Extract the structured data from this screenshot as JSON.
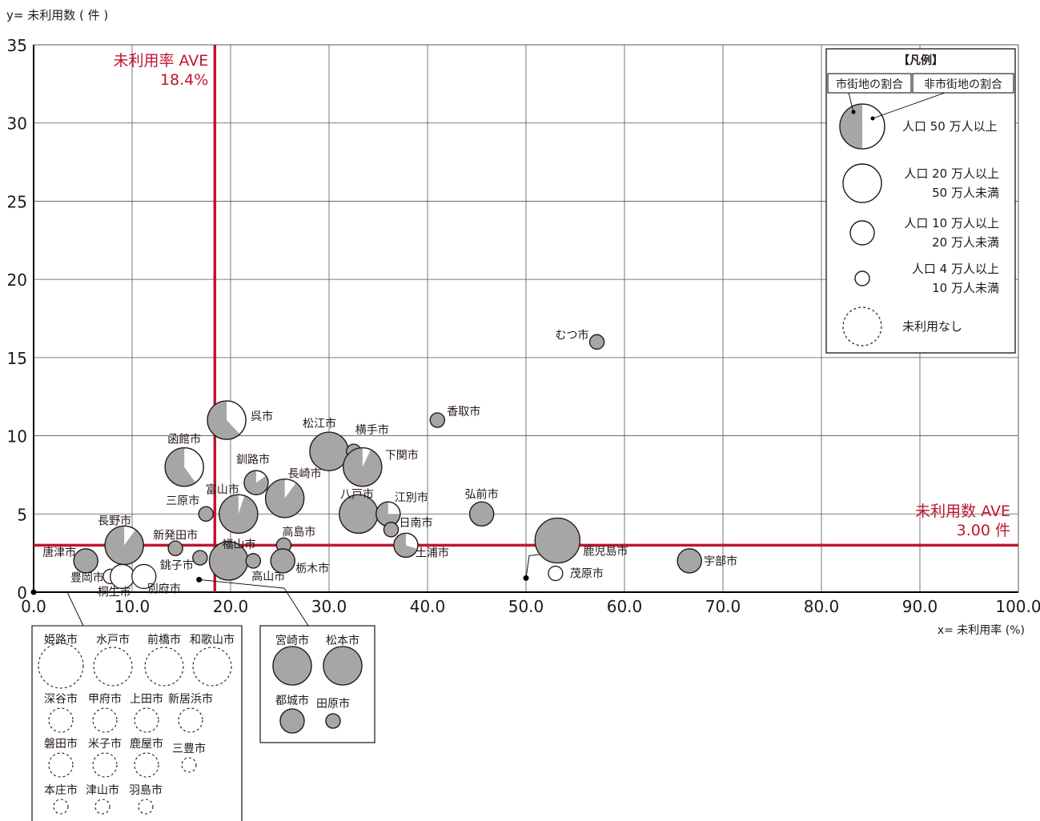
{
  "chart_data": {
    "type": "scatter",
    "title": "",
    "xlabel": "x= 未利用率 (%)",
    "ylabel": "y= 未利用数 ( 件 )",
    "xlim": [
      0,
      100
    ],
    "ylim": [
      0,
      35
    ],
    "xticks": [
      {
        "v": 0,
        "label": "0.0"
      },
      {
        "v": 10,
        "label": "10.0"
      },
      {
        "v": 20,
        "label": "20.0"
      },
      {
        "v": 30,
        "label": "30.0"
      },
      {
        "v": 40,
        "label": "40.0"
      },
      {
        "v": 50,
        "label": "50.0"
      },
      {
        "v": 60,
        "label": "60.0"
      },
      {
        "v": 70,
        "label": "70.0"
      },
      {
        "v": 80,
        "label": "80.0"
      },
      {
        "v": 90,
        "label": "90.0"
      },
      {
        "v": 100,
        "label": "100.0"
      }
    ],
    "yticks": [
      {
        "v": 0,
        "label": "0"
      },
      {
        "v": 5,
        "label": "5"
      },
      {
        "v": 10,
        "label": "10"
      },
      {
        "v": 15,
        "label": "15"
      },
      {
        "v": 20,
        "label": "20"
      },
      {
        "v": 25,
        "label": "25"
      },
      {
        "v": 30,
        "label": "30"
      },
      {
        "v": 35,
        "label": "35"
      }
    ],
    "grid": true,
    "reference_lines": [
      {
        "axis": "x",
        "value": 18.4,
        "label_lines": [
          "未利用率 AVE",
          "18.4%"
        ],
        "color": "#c0152f"
      },
      {
        "axis": "y",
        "value": 3.0,
        "label_lines": [
          "未利用数 AVE",
          "3.00 件"
        ],
        "color": "#c0152f"
      }
    ],
    "size_classes": {
      "L": "人口 50 万人以上",
      "M": "人口 20 万人以上 50 万人未満",
      "S": "人口 10 万人以上 20 万人未満",
      "XS": "人口 4 万人以上 10 万人未満"
    },
    "pie_meaning": {
      "white": "市街地の割合",
      "gray": "非市街地の割合"
    },
    "points": [
      {
        "name": "むつ市",
        "x": 57.2,
        "y": 16,
        "size": "XS",
        "gray": 1
      },
      {
        "name": "香取市",
        "x": 41.0,
        "y": 11,
        "size": "XS",
        "gray": 1
      },
      {
        "name": "呉市",
        "x": 19.6,
        "y": 11,
        "size": "M",
        "gray": 0.62
      },
      {
        "name": "松江市",
        "x": 30.0,
        "y": 9,
        "size": "M",
        "gray": 1
      },
      {
        "name": "横手市",
        "x": 32.5,
        "y": 9,
        "size": "XS",
        "gray": 1
      },
      {
        "name": "下関市",
        "x": 33.4,
        "y": 8,
        "size": "M",
        "gray": 0.93
      },
      {
        "name": "函館市",
        "x": 15.3,
        "y": 8,
        "size": "M",
        "gray": 0.6
      },
      {
        "name": "釧路市",
        "x": 22.6,
        "y": 7,
        "size": "S",
        "gray": 0.85
      },
      {
        "name": "長崎市",
        "x": 25.5,
        "y": 6,
        "size": "M",
        "gray": 0.9
      },
      {
        "name": "富山市",
        "x": 20.8,
        "y": 5,
        "size": "M",
        "gray": 0.95
      },
      {
        "name": "三原市",
        "x": 17.5,
        "y": 5,
        "size": "XS",
        "gray": 1
      },
      {
        "name": "八戸市",
        "x": 33.0,
        "y": 5,
        "size": "M",
        "gray": 1
      },
      {
        "name": "江別市",
        "x": 36.0,
        "y": 5,
        "size": "S",
        "gray": 0.75
      },
      {
        "name": "弘前市",
        "x": 45.5,
        "y": 5,
        "size": "S",
        "gray": 1
      },
      {
        "name": "日南市",
        "x": 36.3,
        "y": 4,
        "size": "XS",
        "gray": 1
      },
      {
        "name": "長野市",
        "x": 9.2,
        "y": 3,
        "size": "M",
        "gray": 0.9
      },
      {
        "name": "新発田市",
        "x": 14.4,
        "y": 2.8,
        "size": "XS",
        "gray": 1
      },
      {
        "name": "高島市",
        "x": 25.4,
        "y": 3,
        "size": "XS",
        "gray": 1
      },
      {
        "name": "土浦市",
        "x": 37.8,
        "y": 3,
        "size": "S",
        "gray": 0.7
      },
      {
        "name": "鹿児島市",
        "x": 53.2,
        "y": 3.3,
        "size": "L",
        "gray": 1
      },
      {
        "name": "唐津市",
        "x": 5.3,
        "y": 2,
        "size": "S",
        "gray": 1
      },
      {
        "name": "銚子市",
        "x": 16.9,
        "y": 2.2,
        "size": "XS",
        "gray": 1
      },
      {
        "name": "福山市",
        "x": 19.8,
        "y": 2,
        "size": "M",
        "gray": 1
      },
      {
        "name": "高山市",
        "x": 22.3,
        "y": 2,
        "size": "XS",
        "gray": 1
      },
      {
        "name": "栃木市",
        "x": 25.3,
        "y": 2,
        "size": "S",
        "gray": 1
      },
      {
        "name": "宇部市",
        "x": 66.6,
        "y": 2,
        "size": "S",
        "gray": 1
      },
      {
        "name": "豊岡市",
        "x": 7.8,
        "y": 1,
        "size": "XS",
        "gray": 0
      },
      {
        "name": "桐生市",
        "x": 9.0,
        "y": 1,
        "size": "S",
        "gray": 0
      },
      {
        "name": "別府市",
        "x": 11.2,
        "y": 1,
        "size": "S",
        "gray": 0
      },
      {
        "name": "茂原市",
        "x": 53.0,
        "y": 1.2,
        "size": "XS",
        "gray": 0
      }
    ],
    "callouts": [
      {
        "x": 0,
        "y": 0,
        "box": "unused"
      },
      {
        "x": 16.8,
        "y": 0.8,
        "box": "zero_rate"
      },
      {
        "x": 50.0,
        "y": 0.9,
        "label": "茂原市"
      }
    ],
    "legend": {
      "title": "【凡例】",
      "header_left": "市街地の割合",
      "header_right": "非市街地の割合",
      "rows": [
        {
          "size": "L",
          "lines": [
            "人口 50 万人以上"
          ]
        },
        {
          "size": "M",
          "lines": [
            "人口 20 万人以上",
            "50 万人未満"
          ]
        },
        {
          "size": "S",
          "lines": [
            "人口 10 万人以上",
            "20 万人未満"
          ]
        },
        {
          "size": "XS",
          "lines": [
            "人口 4 万人以上",
            "10 万人未満"
          ]
        },
        {
          "size": "dashed",
          "lines": [
            "未利用なし"
          ]
        }
      ],
      "placement": "top-right"
    },
    "unused_cities": [
      {
        "name": "姫路市",
        "size": "L"
      },
      {
        "name": "水戸市",
        "size": "M"
      },
      {
        "name": "前橋市",
        "size": "M"
      },
      {
        "name": "和歌山市",
        "size": "M"
      },
      {
        "name": "深谷市",
        "size": "S"
      },
      {
        "name": "甲府市",
        "size": "S"
      },
      {
        "name": "上田市",
        "size": "S"
      },
      {
        "name": "新居浜市",
        "size": "S"
      },
      {
        "name": "磐田市",
        "size": "S"
      },
      {
        "name": "米子市",
        "size": "S"
      },
      {
        "name": "鹿屋市",
        "size": "S"
      },
      {
        "name": "三豊市",
        "size": "XS"
      },
      {
        "name": "本庄市",
        "size": "XS"
      },
      {
        "name": "津山市",
        "size": "XS"
      },
      {
        "name": "羽島市",
        "size": "XS"
      }
    ],
    "zero_rate_cities": [
      {
        "name": "宮崎市",
        "size": "M",
        "gray": 1
      },
      {
        "name": "松本市",
        "size": "M",
        "gray": 1
      },
      {
        "name": "都城市",
        "size": "S",
        "gray": 1
      },
      {
        "name": "田原市",
        "size": "XS",
        "gray": 1
      }
    ],
    "colors": {
      "accent": "#c0152f",
      "bubble_fill": "#a6a6a6",
      "bubble_stroke": "#231815",
      "grid": "#555555",
      "text": "#231815"
    }
  }
}
